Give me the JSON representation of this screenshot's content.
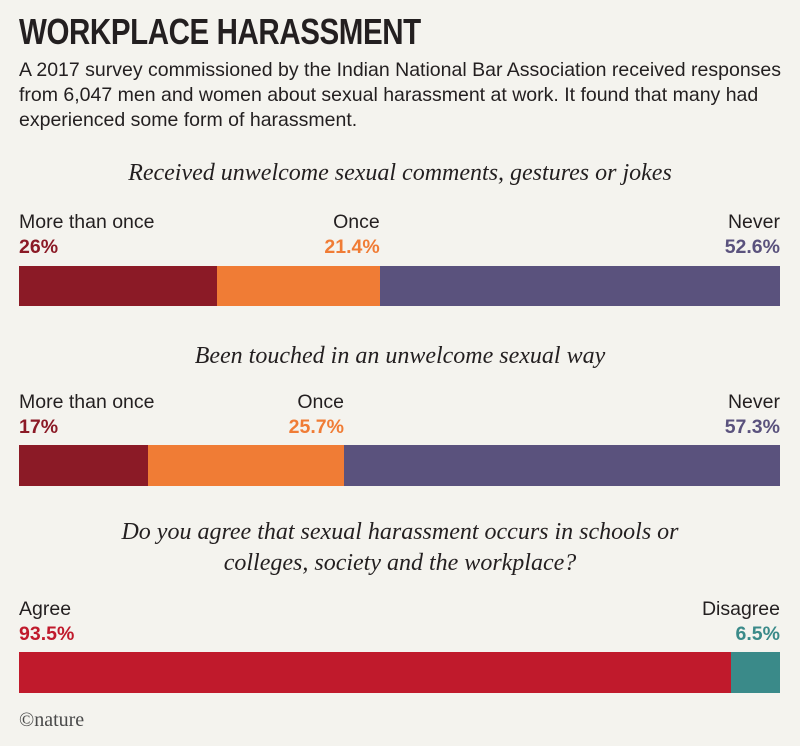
{
  "title": "WORKPLACE HARASSMENT",
  "subtitle": "A 2017 survey commissioned by the Indian National Bar Association received responses from 6,047 men and women about sexual harassment at work. It found that many had experienced some form of harassment.",
  "logo": "©nature",
  "colors": {
    "more_than_once": "#8b1a26",
    "once": "#f07c35",
    "never": "#5a527d",
    "agree": "#c01a2c",
    "disagree": "#3a8a89"
  },
  "chart_data": [
    {
      "type": "bar",
      "orientation": "horizontal-stacked",
      "title": "Received unwelcome sexual comments, gestures or jokes",
      "categories": [
        "More than once",
        "Once",
        "Never"
      ],
      "values": [
        26,
        21.4,
        52.6
      ],
      "value_labels": [
        "26%",
        "21.4%",
        "52.6%"
      ],
      "color_keys": [
        "more_than_once",
        "once",
        "never"
      ],
      "unit": "%"
    },
    {
      "type": "bar",
      "orientation": "horizontal-stacked",
      "title": "Been touched in an unwelcome sexual way",
      "categories": [
        "More than once",
        "Once",
        "Never"
      ],
      "values": [
        17,
        25.7,
        57.3
      ],
      "value_labels": [
        "17%",
        "25.7%",
        "57.3%"
      ],
      "color_keys": [
        "more_than_once",
        "once",
        "never"
      ],
      "unit": "%"
    },
    {
      "type": "bar",
      "orientation": "horizontal-stacked",
      "title": "Do you agree that sexual harassment occurs in schools or colleges, society and the workplace?",
      "categories": [
        "Agree",
        "Disagree"
      ],
      "values": [
        93.5,
        6.5
      ],
      "value_labels": [
        "93.5%",
        "6.5%"
      ],
      "color_keys": [
        "agree",
        "disagree"
      ],
      "unit": "%"
    }
  ]
}
